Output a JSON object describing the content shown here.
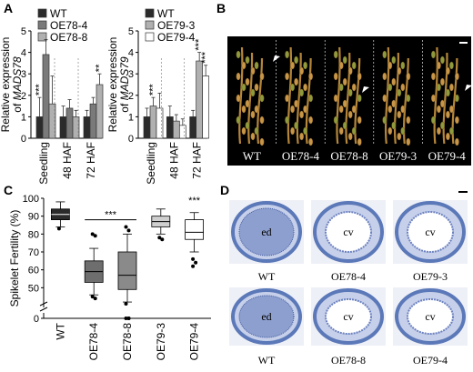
{
  "panels": {
    "A": {
      "letter": "A"
    },
    "B": {
      "letter": "B"
    },
    "C": {
      "letter": "C"
    },
    "D": {
      "letter": "D"
    }
  },
  "colors": {
    "wt": "#2b2b2b",
    "oe_a": "#7a7a7a",
    "oe_b": "#b0b0b0",
    "oe_c": "#ffffff",
    "panicle_bg": "#000000",
    "section_blue": "#5b78b8",
    "section_bg": "#eef0f7"
  },
  "chart_data": [
    {
      "type": "bar",
      "panel": "A-left",
      "ylabel": "Relative expression of MADS78",
      "ylabel_prefix": "Relative expression",
      "ylabel_of": "of",
      "ylabel_gene": "MADS78",
      "categories": [
        "Seedling",
        "48 HAF",
        "72 HAF"
      ],
      "ylim": [
        0,
        5
      ],
      "series": [
        {
          "name": "WT",
          "values": [
            1.0,
            1.0,
            1.0
          ],
          "err": [
            0.9,
            0.5,
            0.3
          ]
        },
        {
          "name": "OE78-4",
          "values": [
            3.9,
            1.4,
            1.6
          ],
          "err": [
            0.7,
            0.4,
            0.3
          ]
        },
        {
          "name": "OE78-8",
          "values": [
            1.6,
            1.0,
            2.5
          ],
          "err": [
            1.3,
            0.3,
            0.5
          ]
        }
      ],
      "annotations": [
        {
          "text": "***",
          "category": 0,
          "series": 0
        },
        {
          "text": "**",
          "category": 2,
          "series": 2
        }
      ]
    },
    {
      "type": "bar",
      "panel": "A-right",
      "ylabel": "Relative expression of MADS79",
      "ylabel_prefix": "Relative expression",
      "ylabel_of": "of",
      "ylabel_gene": "MADS79",
      "categories": [
        "Seedling",
        "48 HAF",
        "72 HAF"
      ],
      "ylim": [
        0,
        5
      ],
      "series": [
        {
          "name": "WT",
          "values": [
            1.0,
            1.0,
            1.0
          ],
          "err": [
            0.4,
            0.5,
            0.3
          ]
        },
        {
          "name": "OE79-3",
          "values": [
            1.5,
            0.8,
            3.6
          ],
          "err": [
            0.4,
            0.3,
            0.4
          ]
        },
        {
          "name": "OE79-4",
          "values": [
            1.4,
            0.6,
            2.9
          ],
          "err": [
            0.7,
            0.3,
            0.5
          ]
        }
      ],
      "annotations": [
        {
          "text": "***",
          "category": 0,
          "series": 1
        },
        {
          "text": "***",
          "category": 2,
          "series": 1
        },
        {
          "text": "***",
          "category": 2,
          "series": 2
        }
      ]
    },
    {
      "type": "box",
      "panel": "C",
      "ylabel": "Spikelet Fertility (%)",
      "ylim": [
        0,
        100
      ],
      "yticks": [
        0,
        40,
        50,
        60,
        70,
        80,
        90,
        100
      ],
      "categories": [
        "WT",
        "OE78-4",
        "OE78-8",
        "OE79-3",
        "OE79-4"
      ],
      "boxes": [
        {
          "q1": 88,
          "median": 91,
          "q3": 94,
          "lo": 84,
          "hi": 98,
          "outliers": [
            83
          ]
        },
        {
          "q1": 53,
          "median": 59,
          "q3": 65,
          "lo": 46,
          "hi": 72,
          "outliers": [
            80,
            79,
            45,
            44
          ]
        },
        {
          "q1": 49,
          "median": 57,
          "q3": 70,
          "lo": 42,
          "hi": 80,
          "outliers": [
            84,
            82,
            41,
            40,
            39,
            26
          ]
        },
        {
          "q1": 84,
          "median": 87,
          "q3": 90,
          "lo": 80,
          "hi": 94,
          "outliers": [
            78,
            77
          ]
        },
        {
          "q1": 77,
          "median": 81,
          "q3": 88,
          "lo": 70,
          "hi": 92,
          "outliers": [
            66,
            64,
            62
          ]
        }
      ],
      "significance": {
        "text": "***",
        "between": [
          1,
          2
        ]
      },
      "significance2": {
        "text": "***",
        "category": 4
      }
    }
  ],
  "B_labels": [
    "WT",
    "OE78-4",
    "OE78-8",
    "OE79-3",
    "OE79-4"
  ],
  "D_labels": {
    "top": [
      "WT",
      "OE78-4",
      "OE79-3"
    ],
    "bottom": [
      "WT",
      "OE78-8",
      "OE79-4"
    ],
    "inner_wt": "ed",
    "inner_oe": "cv"
  }
}
